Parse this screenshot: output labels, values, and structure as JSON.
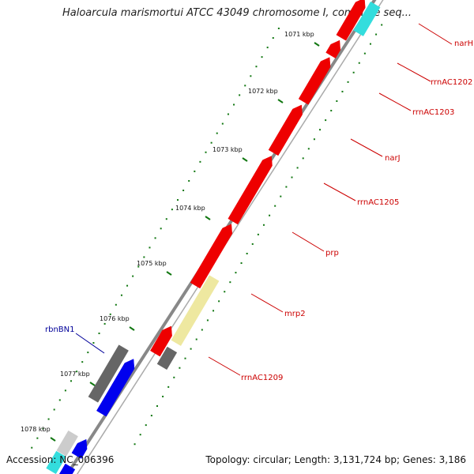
{
  "title": "Haloarcula marismortui ATCC 43049 chromosome I, complete seq...",
  "accession": "Accession: NC_006396",
  "summary": "Topology: circular; Length: 3,131,724 bp; Genes: 3,186",
  "ticks": [
    "1071 kbp",
    "1072 kbp",
    "1073 kbp",
    "1074 kbp",
    "1075 kbp",
    "1076 kbp",
    "1077 kbp",
    "1078 kbp"
  ],
  "labels": [
    {
      "name": "narH",
      "color": "#cc0000"
    },
    {
      "name": "rrnAC1202",
      "color": "#cc0000"
    },
    {
      "name": "rrnAC1203",
      "color": "#cc0000"
    },
    {
      "name": "narJ",
      "color": "#cc0000"
    },
    {
      "name": "rrnAC1205",
      "color": "#cc0000"
    },
    {
      "name": "prp",
      "color": "#cc0000"
    },
    {
      "name": "mrp2",
      "color": "#cc0000"
    },
    {
      "name": "rrnAC1209",
      "color": "#cc0000"
    },
    {
      "name": "rbnBN1",
      "color": "#000099"
    }
  ],
  "colors": {
    "backbone": "#888888",
    "red_gene": "#ee0000",
    "blue_gene": "#0000ee",
    "cyan_gene": "#33dddd",
    "gray_gene": "#666666",
    "light_gray_gene": "#cccccc",
    "yellow_gene": "#eee8a0",
    "tick": "#117711"
  }
}
